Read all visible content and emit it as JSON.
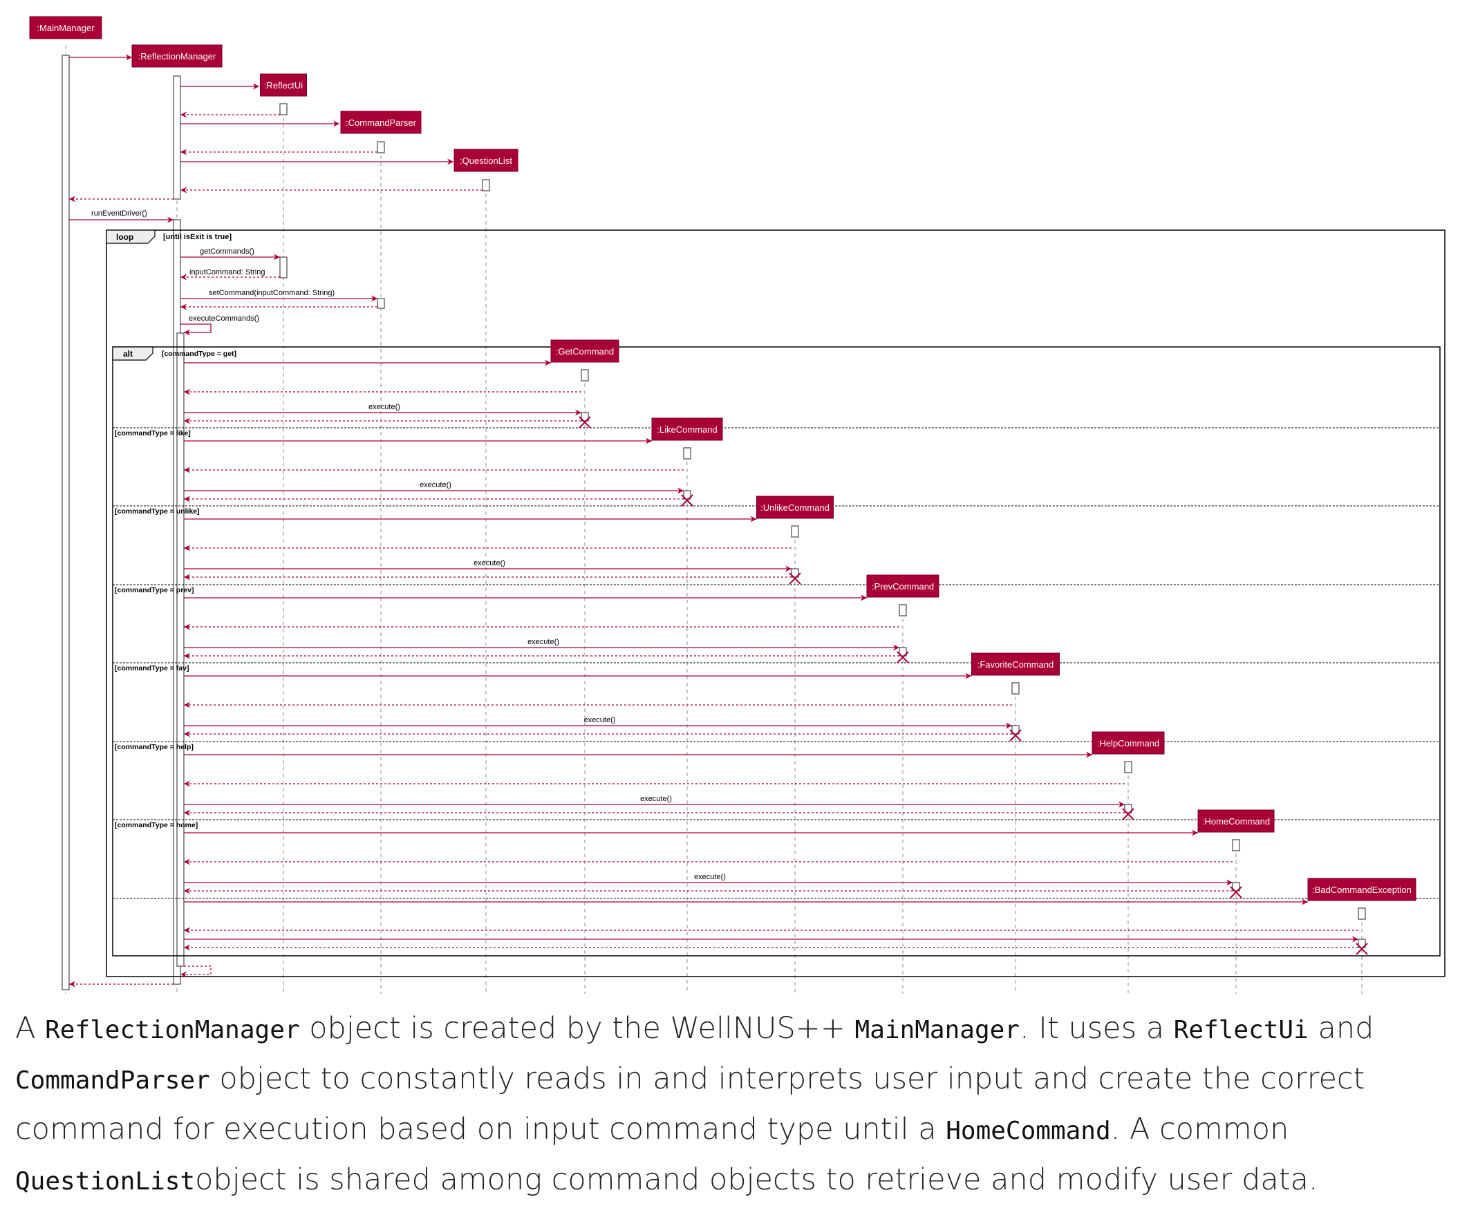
{
  "colors": {
    "accent": "#a80036",
    "lifeline": "#a0a0a0",
    "frame": "#000000",
    "text": "#222222"
  },
  "participants": [
    {
      "id": "mm",
      "label": ":MainManager"
    },
    {
      "id": "rm",
      "label": ":ReflectionManager"
    },
    {
      "id": "ru",
      "label": ":ReflectUi"
    },
    {
      "id": "cp",
      "label": ":CommandParser"
    },
    {
      "id": "ql",
      "label": ":QuestionList"
    },
    {
      "id": "gc",
      "label": ":GetCommand"
    },
    {
      "id": "lc",
      "label": ":LikeCommand"
    },
    {
      "id": "uc",
      "label": ":UnlikeCommand"
    },
    {
      "id": "pc",
      "label": ":PrevCommand"
    },
    {
      "id": "fc",
      "label": ":FavoriteCommand"
    },
    {
      "id": "hc",
      "label": ":HelpCommand"
    },
    {
      "id": "ho",
      "label": ":HomeCommand"
    },
    {
      "id": "be",
      "label": ":BadCommandException"
    }
  ],
  "messages": {
    "run_event_driver": "runEventDriver()",
    "get_commands": "getCommands()",
    "input_command": "inputCommand: String",
    "set_command": "setCommand(inputCommand: String)",
    "execute_commands": "executeCommands()",
    "execute": "execute()"
  },
  "frames": {
    "loop": {
      "tag": "loop",
      "guard": "[until isExit is true]"
    },
    "alt": {
      "tag": "alt",
      "guards": [
        "[commandType = get]",
        "[commandType = like]",
        "[commandType = unlike]",
        "[commandType = prev]",
        "[commandType = fav]",
        "[commandType = help]",
        "[commandType = home]"
      ]
    }
  },
  "caption": {
    "t1": "A ",
    "c1": "ReflectionManager",
    "t2": " object is created by the WellNUS++ ",
    "c2": "MainManager",
    "t3": ". It uses a ",
    "c3": "ReflectUi",
    "t4": " and ",
    "c4": "CommandParser",
    "t5": " object to constantly reads in and interprets user input and create the correct command for execution based on input command type until a ",
    "c5": "HomeCommand",
    "t6": ". A common ",
    "c6": "QuestionList",
    "t7": "object is shared among command objects to retrieve and modify user data."
  }
}
